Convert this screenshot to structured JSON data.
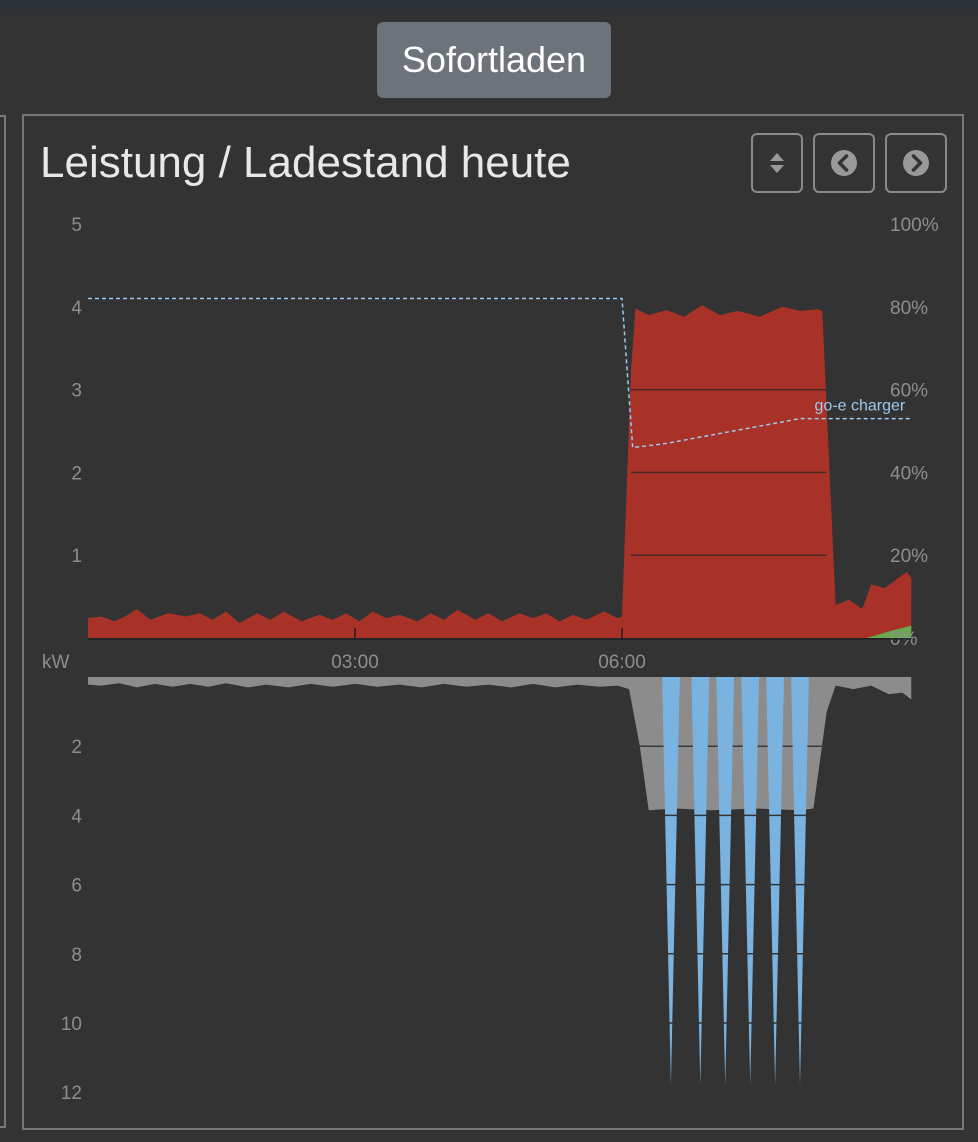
{
  "header": {
    "mode_button_label": "Sofortladen"
  },
  "card": {
    "title": "Leistung / Ladestand heute",
    "controls": [
      {
        "name": "toggle-sort",
        "icon": "sort-icon"
      },
      {
        "name": "previous-day",
        "icon": "chevron-left-circle-icon"
      },
      {
        "name": "next-day",
        "icon": "chevron-right-circle-icon"
      }
    ]
  },
  "colors": {
    "background": "#333333",
    "consumption": "#a83228",
    "pv": "#6aa84f",
    "grid_import": "#8c8c8c",
    "charging": "#7ab3e0",
    "soc_line": "#9ec9ef"
  },
  "chart_data": {
    "type": "area",
    "x_axis": {
      "ticks": [
        "03:00",
        "06:00"
      ],
      "unit_label": "kW",
      "range_hours": [
        0,
        10.5
      ]
    },
    "top_panel": {
      "left_axis": {
        "ticks": [
          "1",
          "2",
          "3",
          "4",
          "5"
        ],
        "range": [
          0,
          5
        ]
      },
      "right_axis": {
        "ticks": [
          "0%",
          "20%",
          "40%",
          "60%",
          "80%",
          "100%"
        ],
        "range": [
          0,
          100
        ]
      },
      "series": [
        {
          "kind": "consumption",
          "points": [
            [
              0,
              0.24
            ],
            [
              0.15,
              0.26
            ],
            [
              0.3,
              0.2
            ],
            [
              0.45,
              0.28
            ],
            [
              0.55,
              0.35
            ],
            [
              0.7,
              0.22
            ],
            [
              0.9,
              0.3
            ],
            [
              1.1,
              0.26
            ],
            [
              1.25,
              0.3
            ],
            [
              1.4,
              0.22
            ],
            [
              1.55,
              0.32
            ],
            [
              1.7,
              0.18
            ],
            [
              1.9,
              0.3
            ],
            [
              2.05,
              0.22
            ],
            [
              2.2,
              0.32
            ],
            [
              2.4,
              0.2
            ],
            [
              2.6,
              0.28
            ],
            [
              2.75,
              0.22
            ],
            [
              2.9,
              0.3
            ],
            [
              3.05,
              0.2
            ],
            [
              3.2,
              0.32
            ],
            [
              3.35,
              0.24
            ],
            [
              3.5,
              0.28
            ],
            [
              3.7,
              0.2
            ],
            [
              3.85,
              0.3
            ],
            [
              4.0,
              0.22
            ],
            [
              4.15,
              0.34
            ],
            [
              4.35,
              0.22
            ],
            [
              4.5,
              0.3
            ],
            [
              4.65,
              0.2
            ],
            [
              4.85,
              0.3
            ],
            [
              5.0,
              0.24
            ],
            [
              5.15,
              0.3
            ],
            [
              5.3,
              0.2
            ],
            [
              5.45,
              0.28
            ],
            [
              5.6,
              0.22
            ],
            [
              5.8,
              0.32
            ],
            [
              5.95,
              0.24
            ],
            [
              6.0,
              0.26
            ],
            [
              6.1,
              3.2
            ],
            [
              6.15,
              3.98
            ],
            [
              6.3,
              3.9
            ],
            [
              6.5,
              3.96
            ],
            [
              6.7,
              3.88
            ],
            [
              6.9,
              4.02
            ],
            [
              7.1,
              3.9
            ],
            [
              7.3,
              3.95
            ],
            [
              7.55,
              3.88
            ],
            [
              7.8,
              4.0
            ],
            [
              8.0,
              3.95
            ],
            [
              8.2,
              3.97
            ],
            [
              8.25,
              3.95
            ],
            [
              8.4,
              0.4
            ],
            [
              8.55,
              0.46
            ],
            [
              8.7,
              0.35
            ],
            [
              8.8,
              0.65
            ],
            [
              8.95,
              0.6
            ],
            [
              9.1,
              0.72
            ],
            [
              9.2,
              0.8
            ],
            [
              9.25,
              0.72
            ]
          ]
        },
        {
          "kind": "pv",
          "points": [
            [
              8.75,
              0
            ],
            [
              9.0,
              0.08
            ],
            [
              9.25,
              0.15
            ]
          ]
        },
        {
          "kind": "soc",
          "name": "go-e charger",
          "points": [
            [
              0,
              82
            ],
            [
              6.0,
              82
            ],
            [
              6.12,
              46
            ],
            [
              6.5,
              47
            ],
            [
              7.0,
              49
            ],
            [
              7.5,
              51
            ],
            [
              8.0,
              53
            ],
            [
              8.5,
              53
            ],
            [
              9.25,
              53
            ]
          ]
        }
      ]
    },
    "bottom_panel": {
      "left_axis": {
        "ticks": [
          "2",
          "4",
          "6",
          "8",
          "10",
          "12"
        ],
        "range": [
          0,
          12
        ]
      },
      "series": [
        {
          "kind": "grid_import",
          "points": [
            [
              0,
              0.22
            ],
            [
              0.15,
              0.25
            ],
            [
              0.35,
              0.18
            ],
            [
              0.55,
              0.3
            ],
            [
              0.75,
              0.2
            ],
            [
              0.95,
              0.28
            ],
            [
              1.15,
              0.2
            ],
            [
              1.35,
              0.28
            ],
            [
              1.55,
              0.18
            ],
            [
              1.8,
              0.3
            ],
            [
              2.0,
              0.22
            ],
            [
              2.25,
              0.3
            ],
            [
              2.5,
              0.2
            ],
            [
              2.75,
              0.28
            ],
            [
              3.0,
              0.2
            ],
            [
              3.25,
              0.28
            ],
            [
              3.5,
              0.22
            ],
            [
              3.75,
              0.3
            ],
            [
              4.0,
              0.2
            ],
            [
              4.25,
              0.28
            ],
            [
              4.5,
              0.22
            ],
            [
              4.75,
              0.3
            ],
            [
              5.0,
              0.2
            ],
            [
              5.25,
              0.3
            ],
            [
              5.5,
              0.22
            ],
            [
              5.75,
              0.28
            ],
            [
              5.95,
              0.25
            ],
            [
              6.08,
              0.35
            ],
            [
              6.2,
              2.0
            ],
            [
              6.3,
              3.85
            ],
            [
              6.6,
              3.8
            ],
            [
              7.0,
              3.85
            ],
            [
              7.5,
              3.8
            ],
            [
              8.0,
              3.85
            ],
            [
              8.15,
              3.8
            ],
            [
              8.3,
              1.0
            ],
            [
              8.4,
              0.25
            ],
            [
              8.6,
              0.35
            ],
            [
              8.8,
              0.25
            ],
            [
              9.0,
              0.5
            ],
            [
              9.15,
              0.45
            ],
            [
              9.25,
              0.65
            ]
          ]
        },
        {
          "kind": "charging",
          "peaks_hours": [
            6.55,
            6.88,
            7.16,
            7.44,
            7.72,
            8.0
          ],
          "peak_kw": 11.8,
          "base_kw": 0
        }
      ]
    }
  }
}
